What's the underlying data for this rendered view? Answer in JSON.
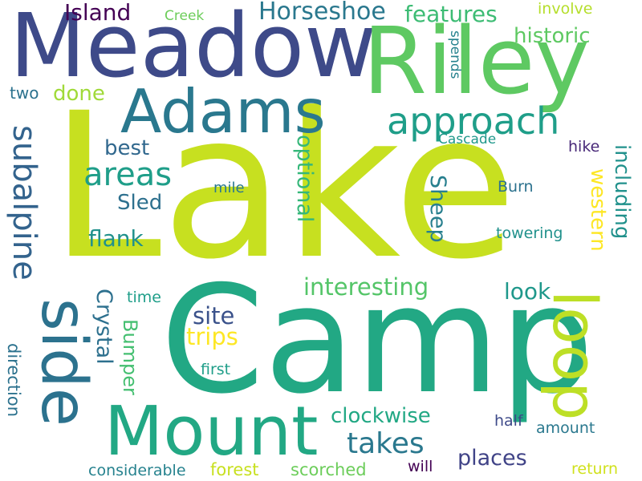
{
  "words": [
    {
      "text": "Lake",
      "color": "#c7e020"
    },
    {
      "text": "Camp",
      "color": "#22a884"
    },
    {
      "text": "Meadow",
      "color": "#3e4a89"
    },
    {
      "text": "Riley",
      "color": "#5ec962"
    },
    {
      "text": "Adams",
      "color": "#2a788e"
    },
    {
      "text": "Mount",
      "color": "#22a884"
    },
    {
      "text": "loop",
      "color": "#bddf26"
    },
    {
      "text": "side",
      "color": "#2c728e"
    },
    {
      "text": "approach",
      "color": "#1f9e89"
    },
    {
      "text": "subalpine",
      "color": "#33638d"
    },
    {
      "text": "Horseshoe",
      "color": "#2a788e"
    },
    {
      "text": "features",
      "color": "#3dbc74"
    },
    {
      "text": "historic",
      "color": "#5ec962"
    },
    {
      "text": "areas",
      "color": "#1f9e89"
    },
    {
      "text": "Island",
      "color": "#440154"
    },
    {
      "text": "Creek",
      "color": "#6ccd5a"
    },
    {
      "text": "involve",
      "color": "#b5de2b"
    },
    {
      "text": "done",
      "color": "#a0da39"
    },
    {
      "text": "two",
      "color": "#2c728e"
    },
    {
      "text": "spends",
      "color": "#26828e"
    },
    {
      "text": "best",
      "color": "#31688e"
    },
    {
      "text": "Cascade",
      "color": "#1f988b"
    },
    {
      "text": "hike",
      "color": "#482878"
    },
    {
      "text": "optional",
      "color": "#35b779"
    },
    {
      "text": "Sheep",
      "color": "#277f8e"
    },
    {
      "text": "western",
      "color": "#fde725"
    },
    {
      "text": "including",
      "color": "#21918c"
    },
    {
      "text": "Sled",
      "color": "#2d708e"
    },
    {
      "text": "mile",
      "color": "#2a788e"
    },
    {
      "text": "Burn",
      "color": "#2c728e"
    },
    {
      "text": "flank",
      "color": "#21918c"
    },
    {
      "text": "towering",
      "color": "#21918c"
    },
    {
      "text": "interesting",
      "color": "#54c568"
    },
    {
      "text": "look",
      "color": "#1f988b"
    },
    {
      "text": "time",
      "color": "#1f9e89"
    },
    {
      "text": "site",
      "color": "#3b528b"
    },
    {
      "text": "trips",
      "color": "#fde725"
    },
    {
      "text": "Crystal",
      "color": "#2d708e"
    },
    {
      "text": "Bumper",
      "color": "#44bf70"
    },
    {
      "text": "direction",
      "color": "#2c728e"
    },
    {
      "text": "first",
      "color": "#1f9e89"
    },
    {
      "text": "clockwise",
      "color": "#22a884"
    },
    {
      "text": "takes",
      "color": "#2a788e"
    },
    {
      "text": "half",
      "color": "#3e4a89"
    },
    {
      "text": "amount",
      "color": "#2a788e"
    },
    {
      "text": "places",
      "color": "#404387"
    },
    {
      "text": "considerable",
      "color": "#26828e"
    },
    {
      "text": "forest",
      "color": "#c8e020"
    },
    {
      "text": "scorched",
      "color": "#6ccd5a"
    },
    {
      "text": "will",
      "color": "#440154"
    },
    {
      "text": "return",
      "color": "#d0e11c"
    }
  ]
}
